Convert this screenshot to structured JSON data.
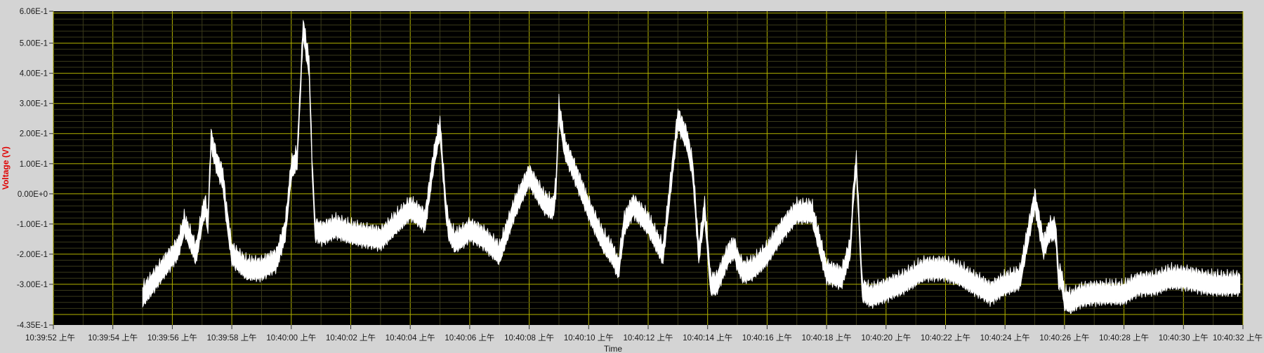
{
  "chart_data": {
    "type": "line",
    "title": "",
    "xlabel": "Time",
    "ylabel": "Voltage (V)",
    "ylim": [
      -0.435,
      0.606
    ],
    "xlim_seconds_after_start": [
      0,
      40
    ],
    "y_tick_labels": [
      "6.06E-1",
      "5.00E-1",
      "4.00E-1",
      "3.00E-1",
      "2.00E-1",
      "1.00E-1",
      "0.00E+0",
      "-1.00E-1",
      "-2.00E-1",
      "-3.00E-1",
      "-4.35E-1"
    ],
    "y_tick_values": [
      0.606,
      0.5,
      0.4,
      0.3,
      0.2,
      0.1,
      0.0,
      -0.1,
      -0.2,
      -0.3,
      -0.435
    ],
    "x_tick_labels": [
      "10:39:52 上午",
      "10:39:54 上午",
      "10:39:56 上午",
      "10:39:58 上午",
      "10:40:00 上午",
      "10:40:02 上午",
      "10:40:04 上午",
      "10:40:06 上午",
      "10:40:08 上午",
      "10:40:10 上午",
      "10:40:12 上午",
      "10:40:14 上午",
      "10:40:16 上午",
      "10:40:18 上午",
      "10:40:20 上午",
      "10:40:22 上午",
      "10:40:24 上午",
      "10:40:26 上午",
      "10:40:28 上午",
      "10:40:30 上午",
      "10:40:32 上午"
    ],
    "grid": true,
    "colors": {
      "plot_background": "#000000",
      "grid_major": "#b3b300",
      "grid_minor": "#3a3a1a",
      "trace": "#ffffff",
      "frame": "#d4d4d4",
      "ylabel": "#e00000"
    },
    "series": [
      {
        "x": [
          3,
          3.6,
          4.2,
          4.4,
          4.6,
          4.8,
          5.0,
          5.1,
          5.2,
          5.3,
          5.5,
          5.7,
          5.8,
          6.0,
          6.5,
          7.0,
          7.5,
          7.8,
          8.0,
          8.2,
          8.4,
          8.6,
          8.7,
          8.8,
          9.0,
          9.1,
          9.3,
          9.5,
          10.0,
          10.5,
          11.0,
          11.5,
          12.0,
          12.5,
          12.8,
          13.0,
          13.2,
          13.3,
          13.5,
          13.8,
          14.0,
          14.5,
          15.0,
          15.5,
          16.0,
          16.5,
          16.8,
          16.9,
          17.0,
          17.2,
          17.5,
          18.0,
          18.5,
          18.8,
          19.0,
          19.2,
          19.5,
          20.0,
          20.5,
          21.0,
          21.3,
          21.5,
          21.7,
          21.9,
          22.1,
          22.3,
          22.5,
          22.7,
          22.9,
          23.0,
          23.2,
          23.5,
          24.0,
          24.5,
          25.0,
          25.5,
          26.0,
          26.5,
          26.8,
          26.9,
          27.0,
          27.2,
          27.5,
          28.0,
          28.2,
          28.5,
          28.8,
          29.0,
          29.1,
          29.2,
          29.3,
          29.5,
          30.0,
          30.5,
          31.0,
          31.5,
          32.0,
          32.5,
          33.0,
          33.3,
          33.5,
          33.7,
          33.8,
          33.9,
          34.0,
          34.2,
          34.5,
          35.0,
          35.5,
          36.0,
          36.5,
          37.0,
          37.5,
          38.0,
          38.5,
          39.0,
          39.5,
          39.9
        ],
        "y": [
          -0.34,
          -0.26,
          -0.18,
          -0.1,
          -0.15,
          -0.2,
          -0.08,
          -0.04,
          -0.1,
          0.18,
          0.1,
          0.05,
          -0.05,
          -0.2,
          -0.25,
          -0.25,
          -0.22,
          -0.12,
          0.08,
          0.12,
          0.55,
          0.42,
          0.1,
          -0.12,
          -0.13,
          -0.13,
          -0.12,
          -0.11,
          -0.13,
          -0.14,
          -0.15,
          -0.1,
          -0.05,
          -0.09,
          0.12,
          0.22,
          -0.05,
          -0.12,
          -0.16,
          -0.14,
          -0.12,
          -0.15,
          -0.2,
          -0.05,
          0.06,
          -0.03,
          -0.05,
          0.02,
          0.28,
          0.15,
          0.08,
          -0.05,
          -0.16,
          -0.2,
          -0.25,
          -0.1,
          -0.04,
          -0.1,
          -0.2,
          0.25,
          0.18,
          0.08,
          -0.2,
          -0.05,
          -0.3,
          -0.3,
          -0.25,
          -0.2,
          -0.18,
          -0.22,
          -0.26,
          -0.25,
          -0.2,
          -0.12,
          -0.06,
          -0.06,
          -0.26,
          -0.28,
          -0.18,
          0.0,
          0.1,
          -0.32,
          -0.34,
          -0.32,
          -0.31,
          -0.3,
          -0.28,
          -0.27,
          -0.26,
          -0.26,
          -0.25,
          -0.25,
          -0.25,
          -0.27,
          -0.3,
          -0.33,
          -0.3,
          -0.28,
          -0.02,
          -0.18,
          -0.12,
          -0.12,
          -0.28,
          -0.28,
          -0.35,
          -0.36,
          -0.34,
          -0.33,
          -0.33,
          -0.33,
          -0.3,
          -0.3,
          -0.28,
          -0.28,
          -0.29,
          -0.3,
          -0.3,
          -0.3
        ]
      }
    ]
  }
}
